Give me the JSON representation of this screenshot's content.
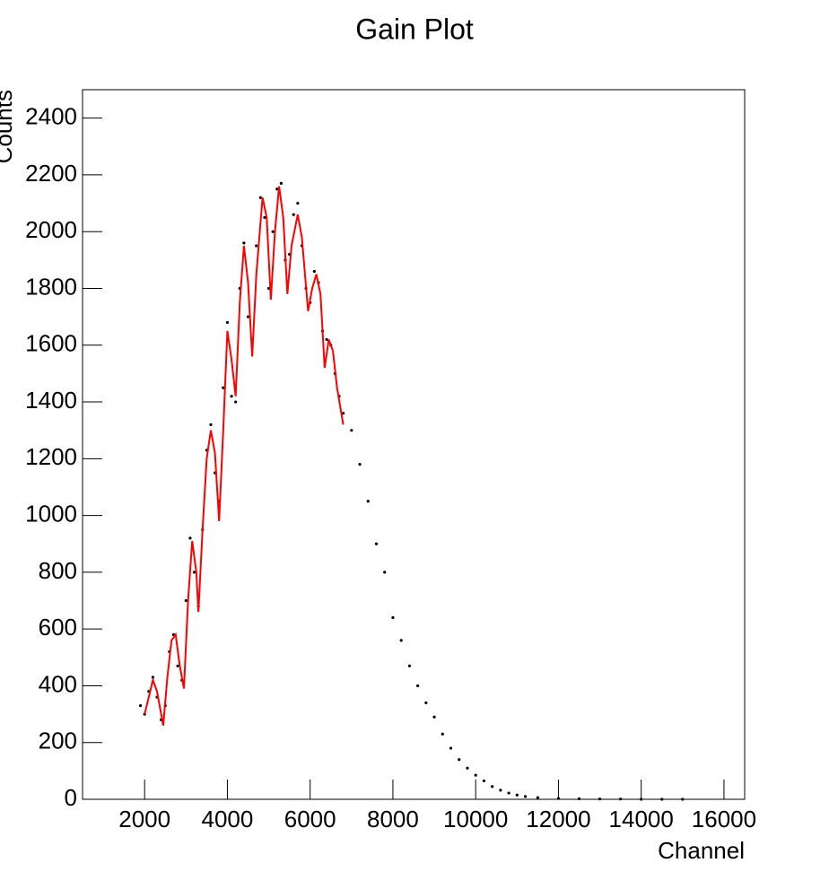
{
  "chart_data": {
    "type": "scatter",
    "title": "Gain Plot",
    "x_label": "Channel",
    "y_label": "Counts",
    "xlim": [
      500,
      16500
    ],
    "ylim": [
      0,
      2500
    ],
    "xticks": [
      2000,
      4000,
      6000,
      8000,
      10000,
      12000,
      14000,
      16000
    ],
    "yticks": [
      0,
      200,
      400,
      600,
      800,
      1000,
      1200,
      1400,
      1600,
      1800,
      2000,
      2200,
      2400
    ],
    "series": [
      {
        "color": "#000000",
        "style": "markers",
        "x": [
          1900,
          2000,
          2100,
          2200,
          2300,
          2400,
          2500,
          2600,
          2700,
          2800,
          2900,
          3000,
          3100,
          3200,
          3300,
          3400,
          3500,
          3600,
          3700,
          3800,
          3900,
          4000,
          4100,
          4200,
          4300,
          4400,
          4500,
          4600,
          4700,
          4800,
          4900,
          5000,
          5100,
          5200,
          5300,
          5400,
          5500,
          5600,
          5700,
          5800,
          5900,
          6000,
          6100,
          6200,
          6300,
          6400,
          6500,
          6600,
          6700,
          6800,
          7000,
          7200,
          7400,
          7600,
          7800,
          8000,
          8200,
          8400,
          8600,
          8800,
          9000,
          9200,
          9400,
          9600,
          9800,
          10000,
          10200,
          10400,
          10600,
          10800,
          11000,
          11200,
          11500,
          12000,
          12500,
          13000,
          13500,
          14000,
          14500,
          15000
        ],
        "values": [
          330,
          300,
          380,
          430,
          360,
          280,
          330,
          520,
          580,
          470,
          420,
          700,
          920,
          800,
          680,
          950,
          1230,
          1320,
          1150,
          1050,
          1450,
          1680,
          1420,
          1400,
          1800,
          1960,
          1700,
          1620,
          1950,
          2120,
          2050,
          1800,
          2000,
          2150,
          2170,
          1900,
          1920,
          2060,
          2100,
          1950,
          1800,
          1750,
          1860,
          1820,
          1650,
          1620,
          1600,
          1500,
          1420,
          1360,
          1300,
          1180,
          1050,
          900,
          800,
          640,
          560,
          470,
          400,
          340,
          290,
          230,
          180,
          140,
          110,
          85,
          65,
          45,
          32,
          22,
          15,
          10,
          6,
          3,
          2,
          1,
          1,
          0,
          0,
          0
        ]
      },
      {
        "color": "#ff0000",
        "style": "line",
        "x": [
          2000,
          2100,
          2200,
          2300,
          2450,
          2550,
          2650,
          2750,
          2850,
          2950,
          3050,
          3150,
          3250,
          3300,
          3400,
          3500,
          3600,
          3700,
          3800,
          3900,
          4000,
          4100,
          4200,
          4300,
          4400,
          4500,
          4600,
          4700,
          4850,
          4950,
          5050,
          5150,
          5250,
          5350,
          5450,
          5550,
          5700,
          5800,
          5950,
          6050,
          6150,
          6250,
          6350,
          6450,
          6550,
          6650,
          6800
        ],
        "values": [
          300,
          360,
          420,
          380,
          260,
          430,
          560,
          580,
          470,
          390,
          700,
          910,
          800,
          660,
          950,
          1200,
          1300,
          1220,
          980,
          1300,
          1650,
          1550,
          1420,
          1750,
          1950,
          1820,
          1560,
          1850,
          2120,
          2050,
          1760,
          2000,
          2160,
          2050,
          1780,
          1950,
          2060,
          1980,
          1720,
          1800,
          1850,
          1780,
          1520,
          1620,
          1580,
          1450,
          1320
        ]
      }
    ]
  }
}
